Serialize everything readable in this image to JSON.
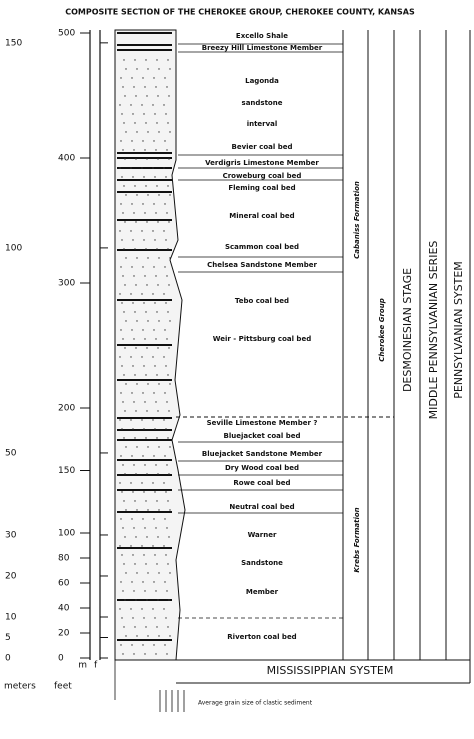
{
  "header": {
    "title": "COMPOSITE SECTION OF THE CHEROKEE GROUP, CHEROKEE COUNTY, KANSAS"
  },
  "scale": {
    "meters_label": "meters",
    "feet_label": "feet",
    "m": "m",
    "f": "f",
    "meters_ticks": [
      150,
      100,
      50,
      30,
      20,
      10,
      5,
      0
    ],
    "feet_ticks": [
      500,
      400,
      300,
      200,
      150,
      100,
      80,
      60,
      40,
      20,
      0
    ]
  },
  "units": [
    "Excello Shale",
    "Breezy Hill Limestone Member",
    "Lagonda",
    "sandstone",
    "interval",
    "Bevier coal bed",
    "Verdigris Limestone Member",
    "Croweburg coal bed",
    "Fleming coal bed",
    "Mineral coal bed",
    "Scammon coal bed",
    "Chelsea Sandstone Member",
    "Tebo coal bed",
    "Weir - Pittsburg coal bed",
    "Seville Limestone Member ?",
    "Bluejacket coal bed",
    "Bluejacket Sandstone Member",
    "Dry Wood coal bed",
    "Rowe coal bed",
    "Neutral coal bed",
    "Warner",
    "Sandstone",
    "Member",
    "Riverton coal bed"
  ],
  "formations": [
    "Cabaniss Formation",
    "Krebs Formation"
  ],
  "group": "Cherokee Group",
  "stage": "DESMOINESIAN STAGE",
  "series": "MIDDLE PENNSYLVANIAN SERIES",
  "system": "PENNSYLVANIAN SYSTEM",
  "base": "MISSISSIPPIAN SYSTEM",
  "grain_size": "Average grain size of clastic sediment"
}
